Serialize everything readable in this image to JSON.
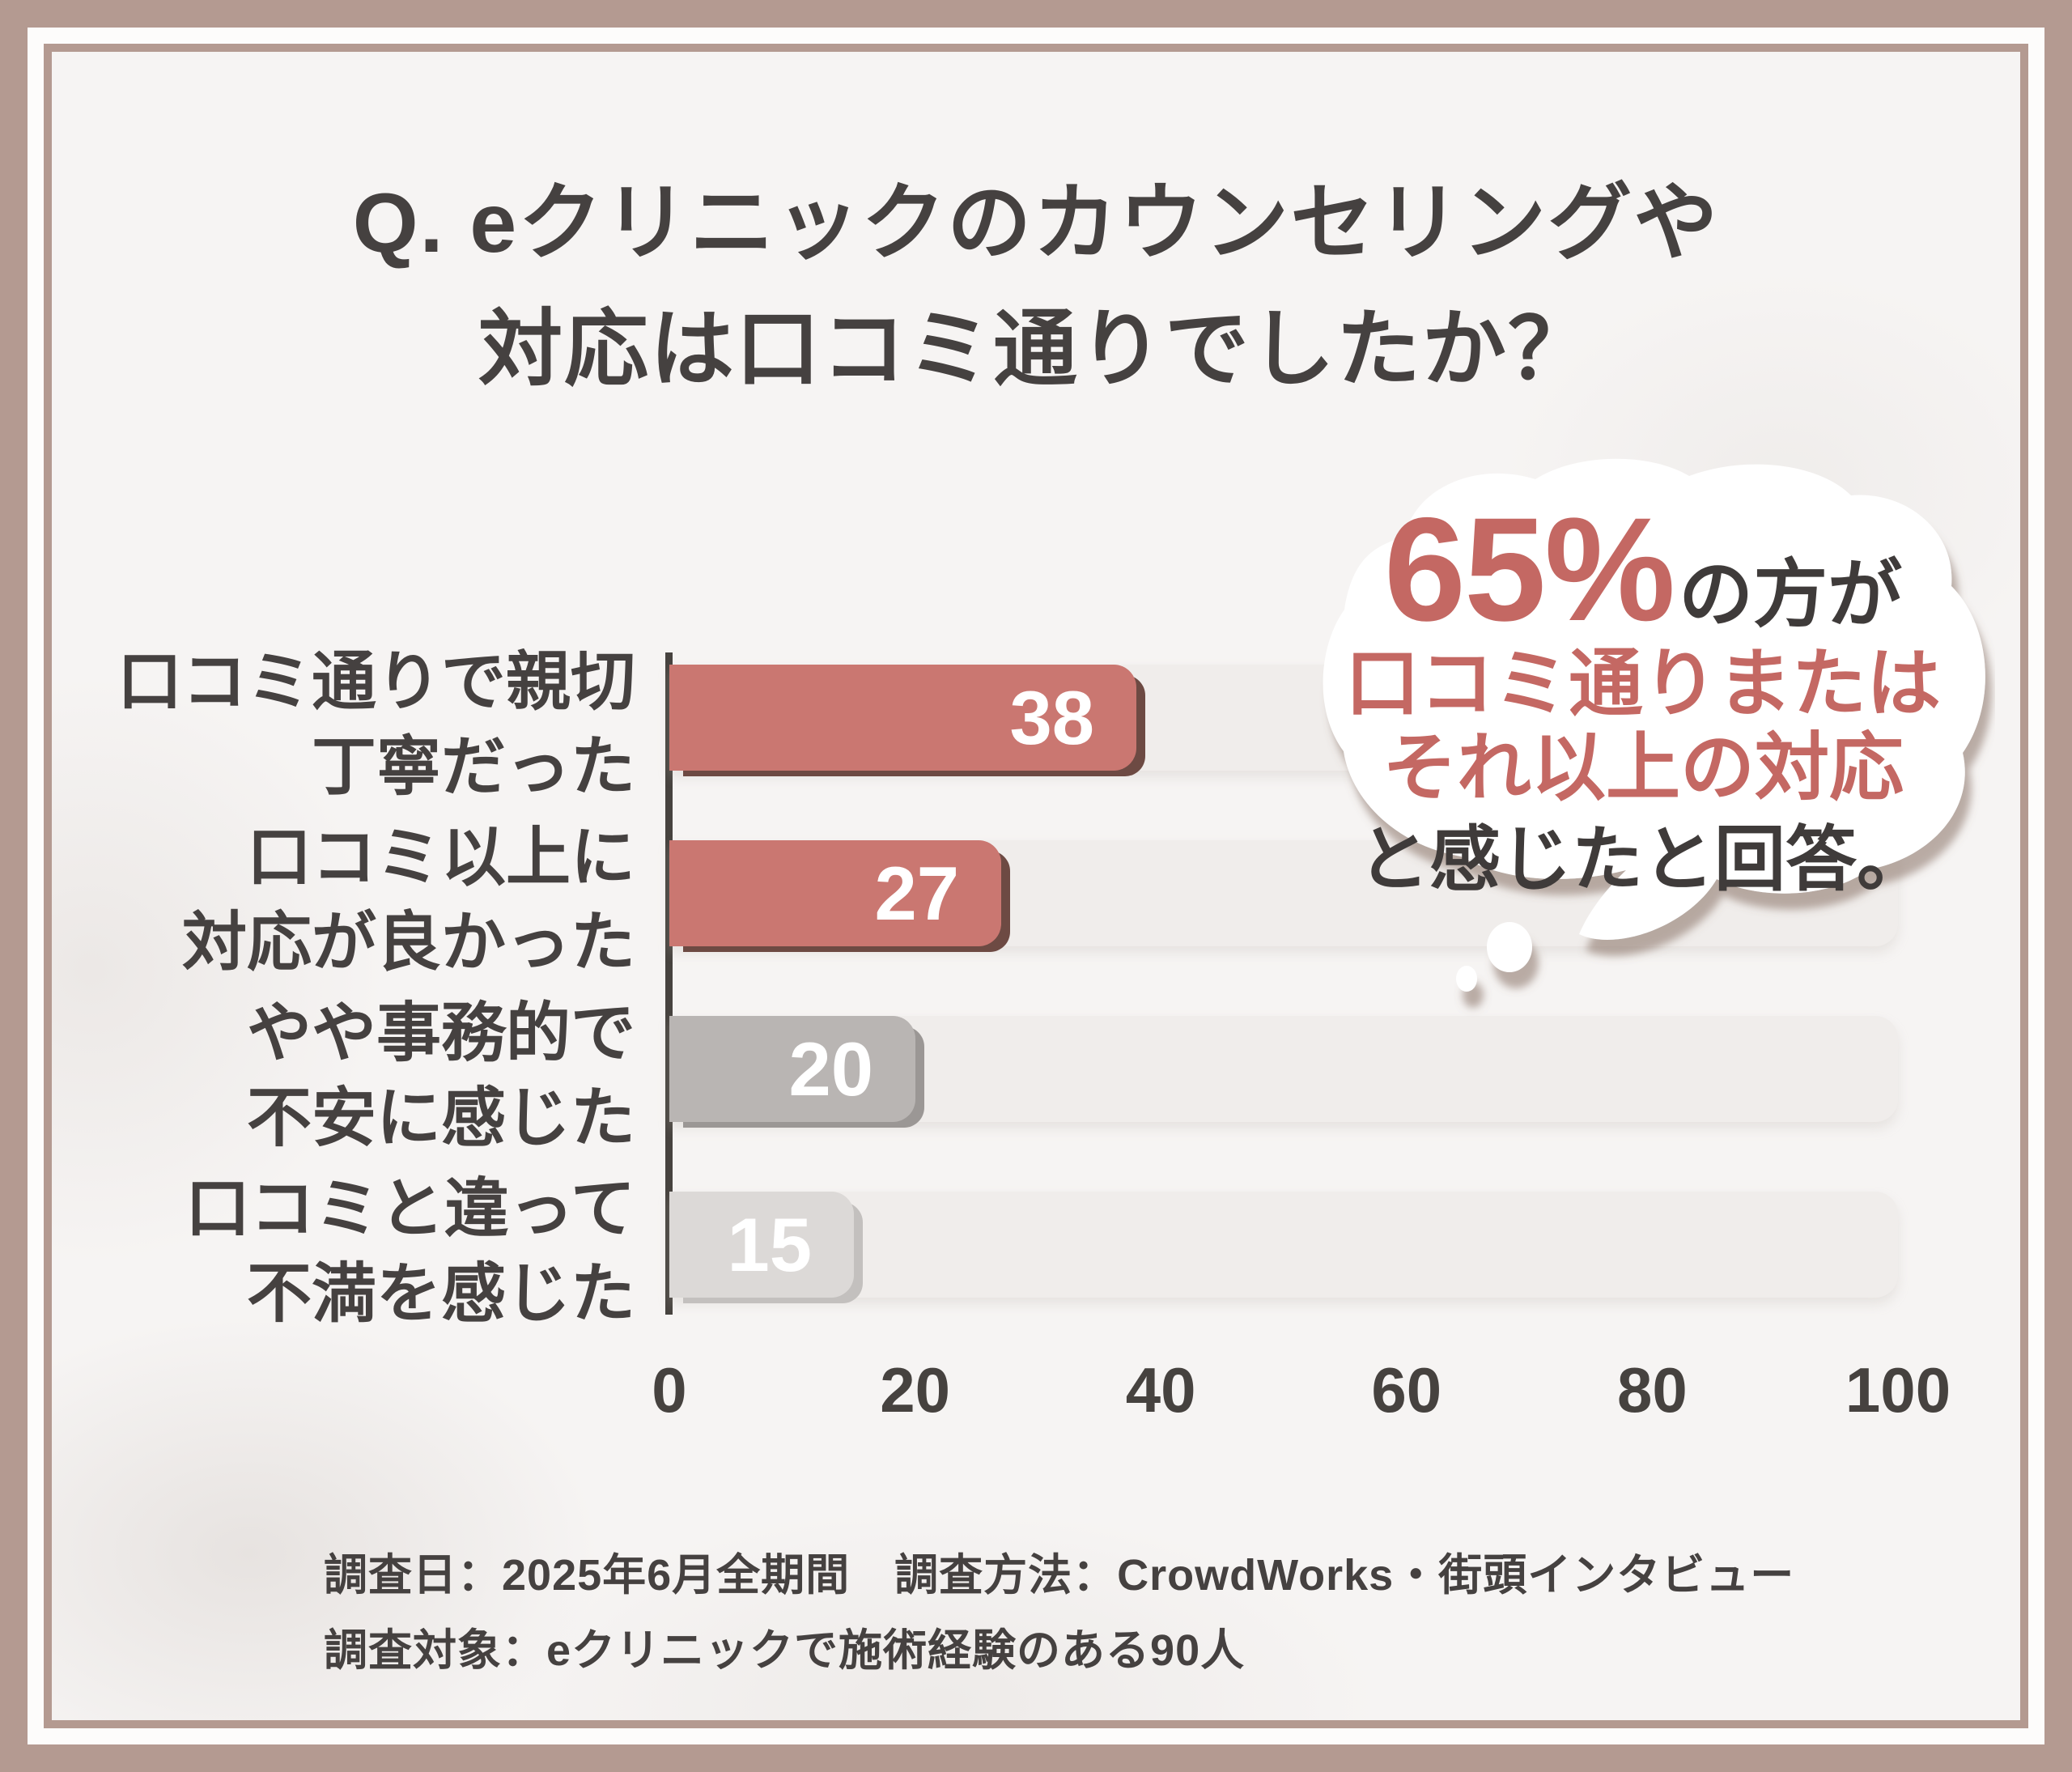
{
  "title": {
    "line1": "Q. eクリニックのカウンセリングや",
    "line2": "対応は口コミ通りでしたか？"
  },
  "chart_data": {
    "type": "bar",
    "orientation": "horizontal",
    "title": "Q. eクリニックのカウンセリングや対応は口コミ通りでしたか？",
    "categories": [
      [
        "口コミ通りで親切",
        "丁寧だった"
      ],
      [
        "口コミ以上に",
        "対応が良かった"
      ],
      [
        "やや事務的で",
        "不安に感じた"
      ],
      [
        "口コミと違って",
        "不満を感じた"
      ]
    ],
    "values": [
      38,
      27,
      20,
      15
    ],
    "value_labels": [
      "38",
      "27",
      "20",
      "15"
    ],
    "xlabel": "",
    "ylabel": "",
    "xlim": [
      0,
      100
    ],
    "x_ticks": [
      "0",
      "20",
      "40",
      "60",
      "80",
      "100"
    ],
    "grid": false,
    "legend": false,
    "bar_colors": [
      "#ca7771",
      "#ca7771",
      "#b9b5b3",
      "#dcd9d7"
    ],
    "bar_shadow_colors": [
      "#6d4a43",
      "#6d4a43",
      "#9b9795",
      "#c3c0be"
    ],
    "track_color": "#f0edeb"
  },
  "callout": {
    "highlight": "65%",
    "highlight_suffix": "の方が",
    "line2": "口コミ通りまたは",
    "line3": "それ以上の対応",
    "line4": "と感じたと回答。"
  },
  "footer": {
    "line1": "調査日：2025年6月全期間　調査方法：CrowdWorks・街頭インタビュー",
    "line2": "調査対象：eクリニックで施術経験のある90人"
  },
  "colors": {
    "accent_red": "#c46863",
    "text_dark": "#454140",
    "frame": "#b49a91",
    "value_text": "#ffffff"
  }
}
